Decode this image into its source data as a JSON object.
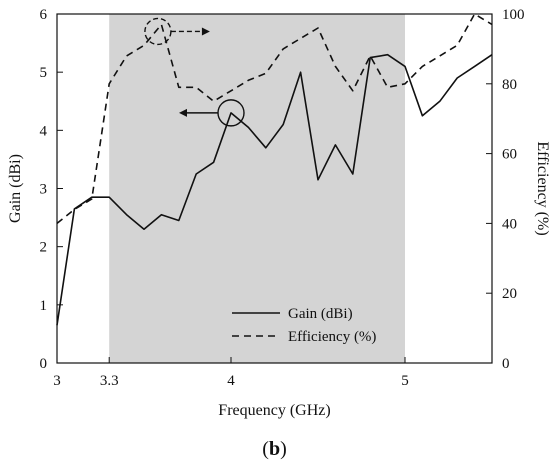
{
  "chart_data": {
    "type": "line",
    "xlabel": "Frequency (GHz)",
    "ylabel_left": "Gain (dBi)",
    "ylabel_right": "Efficiency (%)",
    "caption": "(b)",
    "xlim": [
      3.0,
      5.5
    ],
    "ylim_left": [
      0,
      6
    ],
    "ylim_right": [
      0,
      100
    ],
    "x_ticks": [
      {
        "value": 3.0,
        "label": "3"
      },
      {
        "value": 3.3,
        "label": "3.3"
      },
      {
        "value": 4.0,
        "label": "4"
      },
      {
        "value": 5.0,
        "label": "5"
      }
    ],
    "y_left_ticks": [
      0,
      1,
      2,
      3,
      4,
      5,
      6
    ],
    "y_right_ticks": [
      0,
      20,
      40,
      60,
      80,
      100
    ],
    "shaded_band": [
      3.3,
      5.0
    ],
    "shade_color": "#d4d4d4",
    "legend_position": "bottom-center",
    "grid": false,
    "series": [
      {
        "name": "Gain (dBi)",
        "axis": "left",
        "style": "solid",
        "color": "#111111",
        "x": [
          3.0,
          3.1,
          3.2,
          3.3,
          3.4,
          3.5,
          3.6,
          3.7,
          3.8,
          3.9,
          4.0,
          4.1,
          4.2,
          4.3,
          4.4,
          4.5,
          4.6,
          4.7,
          4.8,
          4.9,
          5.0,
          5.1,
          5.2,
          5.3,
          5.4,
          5.5
        ],
        "y": [
          0.65,
          2.65,
          2.85,
          2.85,
          2.55,
          2.3,
          2.55,
          2.45,
          3.25,
          3.45,
          4.3,
          4.05,
          3.7,
          4.1,
          5.0,
          3.15,
          3.75,
          3.25,
          5.25,
          5.3,
          5.1,
          4.25,
          4.5,
          4.9,
          5.1,
          5.3
        ]
      },
      {
        "name": "Efficiency (%)",
        "axis": "right",
        "style": "dashed",
        "color": "#111111",
        "x": [
          3.0,
          3.1,
          3.2,
          3.3,
          3.4,
          3.5,
          3.6,
          3.7,
          3.8,
          3.9,
          4.0,
          4.1,
          4.2,
          4.3,
          4.4,
          4.5,
          4.6,
          4.7,
          4.8,
          4.9,
          5.0,
          5.1,
          5.2,
          5.3,
          5.4,
          5.5
        ],
        "y": [
          40,
          44,
          47,
          80,
          88,
          91,
          97,
          79,
          79,
          75,
          78,
          81,
          83,
          90,
          93,
          96,
          85,
          78,
          88,
          79,
          80,
          85,
          88,
          91,
          100,
          97
        ]
      }
    ],
    "annotations": [
      {
        "target": "Gain (dBi)",
        "points_to": "left axis",
        "x": 4.0,
        "y": 4.3
      },
      {
        "target": "Efficiency (%)",
        "points_to": "right axis",
        "x": 3.58,
        "y": 95
      }
    ]
  }
}
